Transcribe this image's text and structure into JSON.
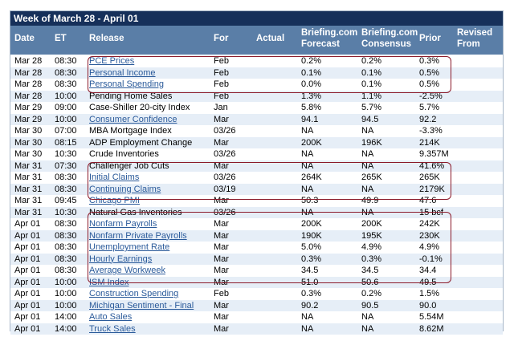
{
  "title": "Week of March 28 - April 01",
  "headers": {
    "date": "Date",
    "et": "ET",
    "release": "Release",
    "for": "For",
    "actual": "Actual",
    "forecast_1": "Briefing.com",
    "forecast_2": "Forecast",
    "consensus_1": "Briefing.com",
    "consensus_2": "Consensus",
    "prior": "Prior",
    "revised_1": "Revised",
    "revised_2": "From"
  },
  "rows": [
    {
      "date": "Mar 28",
      "et": "08:30",
      "release": "PCE Prices",
      "link": true,
      "for": "Feb",
      "actual": "",
      "forecast": "0.2%",
      "consensus": "0.2%",
      "prior": "0.3%",
      "revised": ""
    },
    {
      "date": "Mar 28",
      "et": "08:30",
      "release": "Personal Income",
      "link": true,
      "for": "Feb",
      "actual": "",
      "forecast": "0.1%",
      "consensus": "0.1%",
      "prior": "0.5%",
      "revised": ""
    },
    {
      "date": "Mar 28",
      "et": "08:30",
      "release": "Personal Spending",
      "link": true,
      "for": "Feb",
      "actual": "",
      "forecast": "0.0%",
      "consensus": "0.1%",
      "prior": "0.5%",
      "revised": ""
    },
    {
      "date": "Mar 28",
      "et": "10:00",
      "release": "Pending Home Sales",
      "link": false,
      "for": "Feb",
      "actual": "",
      "forecast": "1.3%",
      "consensus": "1.1%",
      "prior": "-2.5%",
      "revised": ""
    },
    {
      "date": "Mar 29",
      "et": "09:00",
      "release": "Case-Shiller 20-city Index",
      "link": false,
      "for": "Jan",
      "actual": "",
      "forecast": "5.8%",
      "consensus": "5.7%",
      "prior": "5.7%",
      "revised": ""
    },
    {
      "date": "Mar 29",
      "et": "10:00",
      "release": "Consumer Confidence",
      "link": true,
      "for": "Mar",
      "actual": "",
      "forecast": "94.1",
      "consensus": "94.5",
      "prior": "92.2",
      "revised": ""
    },
    {
      "date": "Mar 30",
      "et": "07:00",
      "release": "MBA Mortgage Index",
      "link": false,
      "for": "03/26",
      "actual": "",
      "forecast": "NA",
      "consensus": "NA",
      "prior": "-3.3%",
      "revised": ""
    },
    {
      "date": "Mar 30",
      "et": "08:15",
      "release": "ADP Employment Change",
      "link": false,
      "for": "Mar",
      "actual": "",
      "forecast": "200K",
      "consensus": "196K",
      "prior": "214K",
      "revised": ""
    },
    {
      "date": "Mar 30",
      "et": "10:30",
      "release": "Crude Inventories",
      "link": false,
      "for": "03/26",
      "actual": "",
      "forecast": "NA",
      "consensus": "NA",
      "prior": "9.357M",
      "revised": ""
    },
    {
      "date": "Mar 31",
      "et": "07:30",
      "release": "Challenger Job Cuts",
      "link": false,
      "for": "Mar",
      "actual": "",
      "forecast": "NA",
      "consensus": "NA",
      "prior": "41.6%",
      "revised": ""
    },
    {
      "date": "Mar 31",
      "et": "08:30",
      "release": "Initial Claims",
      "link": true,
      "for": "03/26",
      "actual": "",
      "forecast": "264K",
      "consensus": "265K",
      "prior": "265K",
      "revised": ""
    },
    {
      "date": "Mar 31",
      "et": "08:30",
      "release": "Continuing Claims",
      "link": true,
      "for": "03/19",
      "actual": "",
      "forecast": "NA",
      "consensus": "NA",
      "prior": "2179K",
      "revised": ""
    },
    {
      "date": "Mar 31",
      "et": "09:45",
      "release": "Chicago PMI",
      "link": true,
      "for": "Mar",
      "actual": "",
      "forecast": "50.3",
      "consensus": "49.9",
      "prior": "47.6",
      "revised": ""
    },
    {
      "date": "Mar 31",
      "et": "10:30",
      "release": "Natural Gas Inventories",
      "link": false,
      "for": "03/26",
      "actual": "",
      "forecast": "NA",
      "consensus": "NA",
      "prior": "15 bcf",
      "revised": ""
    },
    {
      "date": "Apr 01",
      "et": "08:30",
      "release": "Nonfarm Payrolls",
      "link": true,
      "for": "Mar",
      "actual": "",
      "forecast": "200K",
      "consensus": "200K",
      "prior": "242K",
      "revised": ""
    },
    {
      "date": "Apr 01",
      "et": "08:30",
      "release": "Nonfarm Private Payrolls",
      "link": true,
      "for": "Mar",
      "actual": "",
      "forecast": "190K",
      "consensus": "195K",
      "prior": "230K",
      "revised": ""
    },
    {
      "date": "Apr 01",
      "et": "08:30",
      "release": "Unemployment Rate",
      "link": true,
      "for": "Mar",
      "actual": "",
      "forecast": "5.0%",
      "consensus": "4.9%",
      "prior": "4.9%",
      "revised": ""
    },
    {
      "date": "Apr 01",
      "et": "08:30",
      "release": "Hourly Earnings",
      "link": true,
      "for": "Mar",
      "actual": "",
      "forecast": "0.3%",
      "consensus": "0.3%",
      "prior": "-0.1%",
      "revised": ""
    },
    {
      "date": "Apr 01",
      "et": "08:30",
      "release": "Average Workweek",
      "link": true,
      "for": "Mar",
      "actual": "",
      "forecast": "34.5",
      "consensus": "34.5",
      "prior": "34.4",
      "revised": ""
    },
    {
      "date": "Apr 01",
      "et": "10:00",
      "release": "ISM Index",
      "link": true,
      "for": "Mar",
      "actual": "",
      "forecast": "51.0",
      "consensus": "50.6",
      "prior": "49.5",
      "revised": ""
    },
    {
      "date": "Apr 01",
      "et": "10:00",
      "release": "Construction Spending",
      "link": true,
      "for": "Feb",
      "actual": "",
      "forecast": "0.3%",
      "consensus": "0.2%",
      "prior": "1.5%",
      "revised": ""
    },
    {
      "date": "Apr 01",
      "et": "10:00",
      "release": "Michigan Sentiment - Final",
      "link": true,
      "for": "Mar",
      "actual": "",
      "forecast": "90.2",
      "consensus": "90.5",
      "prior": "90.0",
      "revised": ""
    },
    {
      "date": "Apr 01",
      "et": "14:00",
      "release": "Auto Sales",
      "link": true,
      "for": "Mar",
      "actual": "",
      "forecast": "NA",
      "consensus": "NA",
      "prior": "5.54M",
      "revised": ""
    },
    {
      "date": "Apr 01",
      "et": "14:00",
      "release": "Truck Sales",
      "link": true,
      "for": "Mar",
      "actual": "",
      "forecast": "NA",
      "consensus": "NA",
      "prior": "8.62M",
      "revised": ""
    }
  ],
  "colors": {
    "title_bar": "#16305a",
    "header": "#5a7ea7",
    "row_alt": "#e6eef7",
    "link": "#2a5a9a",
    "highlight_border": "#8b1a2a"
  }
}
